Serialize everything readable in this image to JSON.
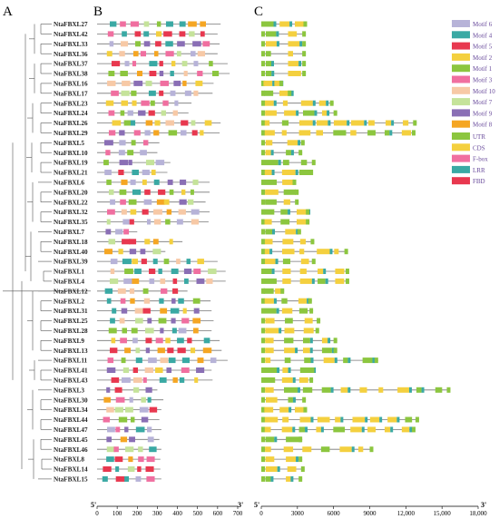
{
  "panel_labels": {
    "a": "A",
    "b": "B",
    "c": "C"
  },
  "genes": [
    "NtaFBXL27",
    "NtaFBXL42",
    "NtaFBXL33",
    "NtaFBXL36",
    "NtaFBXL37",
    "NtaFBXL38",
    "NtaFBXL16",
    "NtaFBXL17",
    "NtaFBXL23",
    "NtaFBXL24",
    "NtaFBXL26",
    "NtaFBXL29",
    "NtaFBXL5",
    "NtaFBXL10",
    "NtaFBXL19",
    "NtaFBXL21",
    "NtaFBXL6",
    "NtaFBXL20",
    "NtaFBXL22",
    "NtaFBXL32",
    "NtaFBXL35",
    "NtaFBXL7",
    "NtaFBXL18",
    "NtaFBXL40",
    "NtaFBXL39",
    "NtaFBXL1",
    "NtaFBXL4",
    "NtaFBXL12",
    "NtaFBXL2",
    "NtaFBXL31",
    "NtaFBXL25",
    "NtaFBXL28",
    "NtaFBXL9",
    "NtaFBXL13",
    "NtaFBXL11",
    "NtaFBXL41",
    "NtaFBXL43",
    "NtaFBXL3",
    "NtaFBXL30",
    "NtaFBXL34",
    "NtaFBXL44",
    "NtaFBXL47",
    "NtaFBXL45",
    "NtaFBXL46",
    "NtaFBXL8",
    "NtaFBXL14",
    "NtaFBXL15"
  ],
  "motif_axis": {
    "start": "5'",
    "end": "3'",
    "ticks": [
      0,
      100,
      200,
      300,
      400,
      500,
      600,
      700
    ],
    "max": 700
  },
  "structure_axis": {
    "start": "5'",
    "end": "3'",
    "ticks": [
      0,
      3000,
      6000,
      9000,
      12000,
      15000,
      18000
    ],
    "tick_labels": [
      "0",
      "3000",
      "6000",
      "9000",
      "12,000",
      "15,000",
      "18,000"
    ],
    "max": 18000
  },
  "motif_legend": [
    {
      "name": "Motif 6",
      "color": "#b7b3d8"
    },
    {
      "name": "Motif 4",
      "color": "#3aa9a4"
    },
    {
      "name": "Motif 5",
      "color": "#e8384f"
    },
    {
      "name": "Motif 2",
      "color": "#f4d03f"
    },
    {
      "name": "Motif 1",
      "color": "#8cc63f"
    },
    {
      "name": "Motif 3",
      "color": "#f06fa0"
    },
    {
      "name": "Motif 10",
      "color": "#f7c9a6"
    },
    {
      "name": "Motif 7",
      "color": "#c5e39a"
    },
    {
      "name": "Motif 9",
      "color": "#8a6fb5"
    },
    {
      "name": "Motif 8",
      "color": "#f5a623"
    }
  ],
  "structure_legend": [
    {
      "name": "UTR",
      "color": "#8cc63f"
    },
    {
      "name": "CDS",
      "color": "#f4d03f"
    },
    {
      "name": "F-box",
      "color": "#f06fa0"
    },
    {
      "name": "LRR",
      "color": "#3aa9a4"
    },
    {
      "name": "FBD",
      "color": "#e8384f"
    }
  ],
  "motif_lengths": [
    615,
    600,
    610,
    600,
    650,
    660,
    580,
    575,
    470,
    455,
    615,
    610,
    310,
    300,
    365,
    350,
    560,
    560,
    540,
    560,
    555,
    200,
    425,
    340,
    600,
    640,
    640,
    450,
    565,
    570,
    580,
    570,
    610,
    620,
    650,
    570,
    575,
    300,
    330,
    320,
    310,
    320,
    310,
    320,
    315,
    315,
    320
  ],
  "gene_lengths": [
    3800,
    3700,
    3700,
    3700,
    3700,
    3700,
    1800,
    2500,
    6000,
    6300,
    12900,
    12800,
    3600,
    3400,
    4500,
    4300,
    2900,
    3100,
    3100,
    4000,
    4000,
    3300,
    4400,
    7200,
    4500,
    7300,
    7300,
    1900,
    4200,
    4300,
    4900,
    4800,
    6300,
    6300,
    9700,
    4400,
    4300,
    15700,
    3700,
    3800,
    13100,
    12800,
    3400,
    9300,
    3400,
    3600,
    3400
  ]
}
